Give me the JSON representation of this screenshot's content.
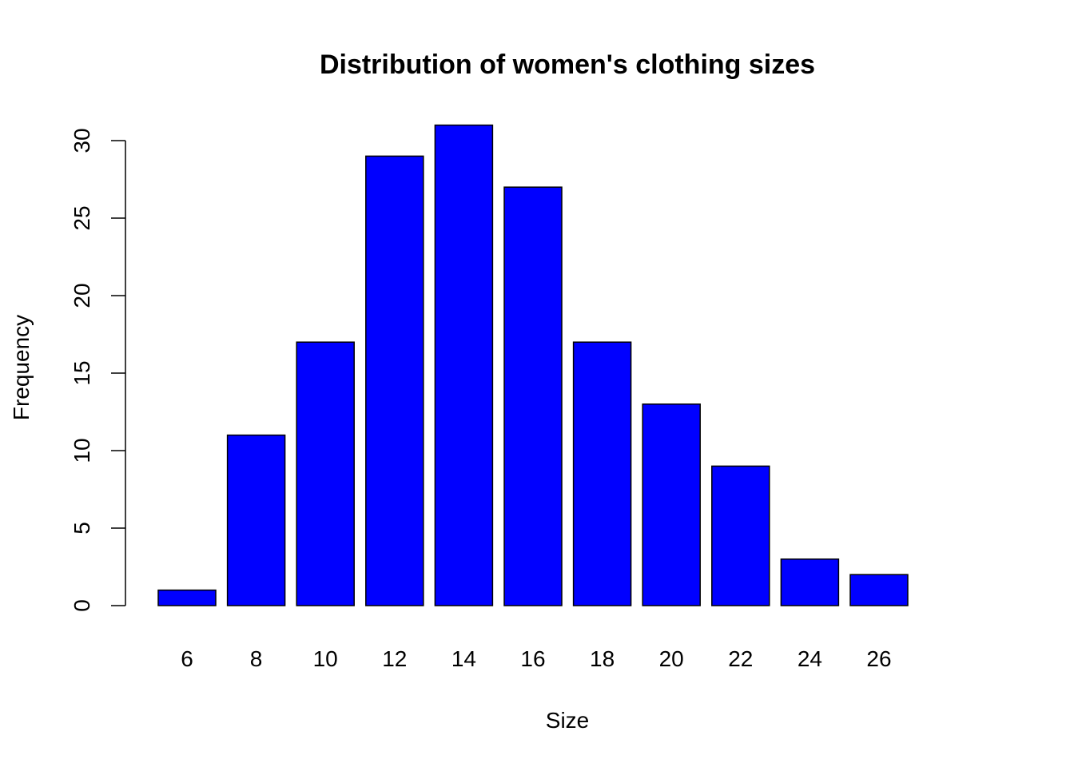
{
  "chart_data": {
    "type": "bar",
    "title": "Distribution of women's clothing sizes",
    "xlabel": "Size",
    "ylabel": "Frequency",
    "categories": [
      "6",
      "8",
      "10",
      "12",
      "14",
      "16",
      "18",
      "20",
      "22",
      "24",
      "26"
    ],
    "values": [
      1,
      11,
      17,
      29,
      31,
      27,
      17,
      13,
      9,
      3,
      2
    ],
    "ylim": [
      0,
      30
    ],
    "yticks": [
      0,
      5,
      10,
      15,
      20,
      25,
      30
    ],
    "grid": false,
    "legend": "none",
    "bar_color": "#0000ff",
    "bar_border_color": "#000000"
  }
}
